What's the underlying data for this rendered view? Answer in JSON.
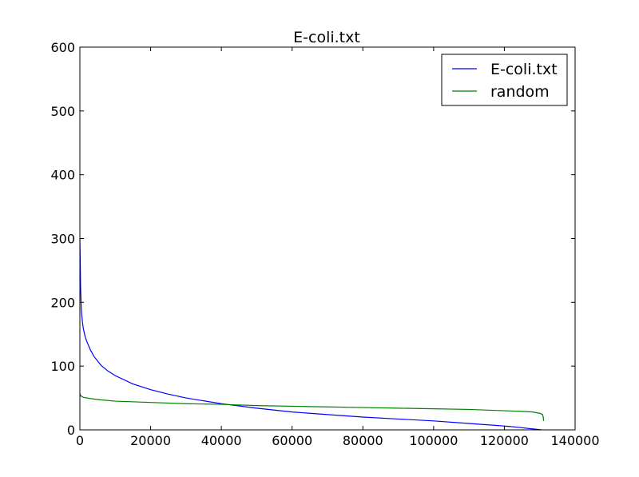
{
  "chart_data": {
    "type": "line",
    "title": "E-coli.txt",
    "xlabel": "",
    "ylabel": "",
    "xlim": [
      0,
      140000
    ],
    "ylim": [
      0,
      600
    ],
    "x_ticks": [
      "0",
      "20000",
      "40000",
      "60000",
      "80000",
      "100000",
      "120000",
      "140000"
    ],
    "y_ticks": [
      "0",
      "100",
      "200",
      "300",
      "400",
      "500",
      "600"
    ],
    "grid": false,
    "legend": "top-right",
    "series": [
      {
        "name": "E-coli.txt",
        "color": "#0000ff",
        "x": [
          0,
          200,
          400,
          700,
          1000,
          1500,
          2000,
          3000,
          4000,
          5000,
          6000,
          8000,
          10000,
          15000,
          20000,
          25000,
          30000,
          40000,
          50000,
          60000,
          70000,
          80000,
          90000,
          100000,
          110000,
          115000,
          120000,
          124000,
          127000,
          129000,
          130500
        ],
        "y": [
          300,
          225,
          190,
          170,
          158,
          146,
          138,
          125,
          115,
          108,
          101,
          92,
          85,
          72,
          63,
          56,
          50,
          41,
          34,
          28,
          24,
          20,
          17,
          14,
          10,
          8,
          6,
          4,
          2,
          1,
          0
        ]
      },
      {
        "name": "random",
        "color": "#008000",
        "x": [
          0,
          300,
          1000,
          3000,
          6000,
          10000,
          20000,
          30000,
          40000,
          50000,
          60000,
          70000,
          80000,
          90000,
          100000,
          110000,
          120000,
          125000,
          128000,
          130000,
          130800,
          131000,
          131100
        ],
        "y": [
          57,
          53,
          51,
          49,
          47,
          45,
          43,
          41,
          40,
          38,
          37,
          36,
          35,
          34,
          33,
          32,
          30,
          29,
          28,
          26,
          24,
          20,
          14
        ]
      }
    ]
  }
}
